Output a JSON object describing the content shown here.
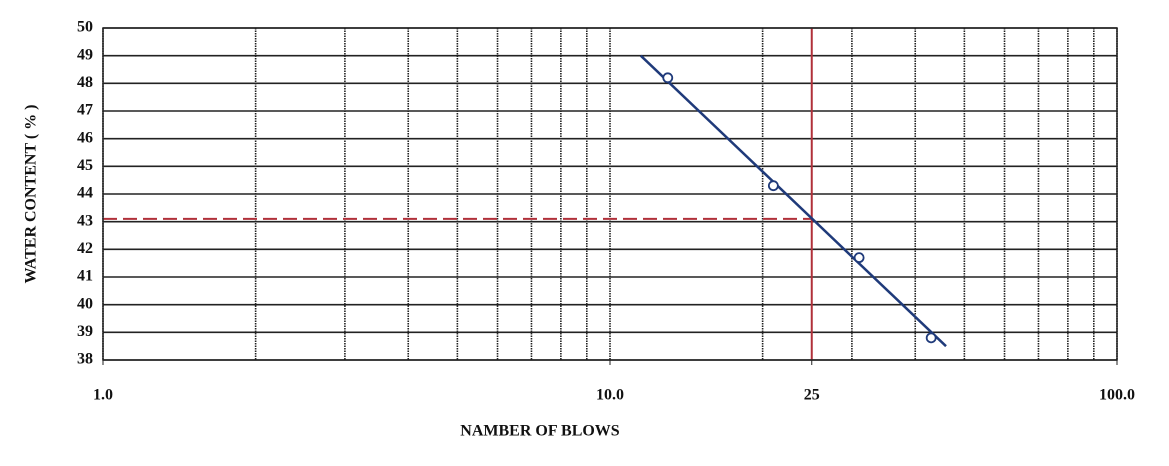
{
  "chart_data": {
    "type": "scatter",
    "x_label": "NAMBER OF BLOWS",
    "y_label": "WATER CONTENT ( % )",
    "xlim": [
      1,
      100
    ],
    "ylim": [
      38,
      50
    ],
    "log_x": true,
    "xticks": [
      {
        "value": 1,
        "label": "1.0"
      },
      {
        "value": 10,
        "label": "10.0"
      },
      {
        "value": 25,
        "label": "25"
      },
      {
        "value": 100,
        "label": "100.0"
      }
    ],
    "yticks": [
      38,
      39,
      40,
      41,
      42,
      43,
      44,
      45,
      46,
      47,
      48,
      49,
      50
    ],
    "x_grid": [
      1,
      2,
      3,
      4,
      5,
      6,
      7,
      8,
      9,
      10,
      20,
      30,
      40,
      50,
      60,
      70,
      80,
      90,
      100
    ],
    "grid": true,
    "points": {
      "x": [
        13,
        21,
        31,
        43
      ],
      "y": [
        48.2,
        44.3,
        41.7,
        38.8
      ],
      "color": "#1f3a7a"
    },
    "trend": {
      "x": [
        11.5,
        46
      ],
      "y": [
        49.0,
        38.5
      ],
      "color": "#1f3a7a"
    },
    "reference": {
      "x": 25,
      "y": 43.1,
      "color": "#b0303a"
    }
  }
}
